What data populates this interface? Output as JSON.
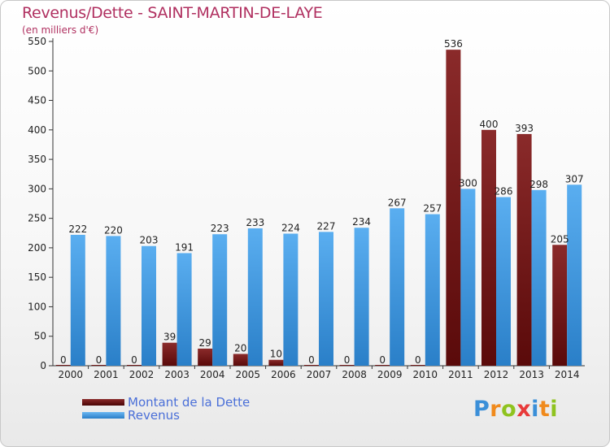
{
  "title": "Revenus/Dette - SAINT-MARTIN-DE-LAYE",
  "subtitle": "(en milliers d'€)",
  "logo": {
    "text": "Proxiti",
    "letters": [
      {
        "ch": "P",
        "color": "#3b8fd8"
      },
      {
        "ch": "r",
        "color": "#f08a1c"
      },
      {
        "ch": "o",
        "color": "#8fc31f"
      },
      {
        "ch": "x",
        "color": "#e83a3a"
      },
      {
        "ch": "i",
        "color": "#3b8fd8"
      },
      {
        "ch": "t",
        "color": "#f08a1c"
      },
      {
        "ch": "i",
        "color": "#8fc31f"
      }
    ]
  },
  "chart_data": {
    "type": "bar",
    "title": "Revenus/Dette - SAINT-MARTIN-DE-LAYE",
    "subtitle": "(en milliers d'€)",
    "xlabel": "",
    "ylabel": "",
    "ylim": [
      0,
      550
    ],
    "yticks": [
      0,
      50,
      100,
      150,
      200,
      250,
      300,
      350,
      400,
      450,
      500,
      550
    ],
    "grid": false,
    "legend_position": "bottom-left",
    "categories": [
      "2000",
      "2001",
      "2002",
      "2003",
      "2004",
      "2005",
      "2006",
      "2007",
      "2008",
      "2009",
      "2010",
      "2011",
      "2012",
      "2013",
      "2014"
    ],
    "series": [
      {
        "name": "Montant de la Dette",
        "color": "#7a1a1a",
        "values": [
          0,
          0,
          0,
          39,
          29,
          20,
          10,
          0,
          0,
          0,
          0,
          536,
          400,
          393,
          205
        ]
      },
      {
        "name": "Revenus",
        "color": "#4aa3e8",
        "values": [
          222,
          220,
          203,
          191,
          223,
          233,
          224,
          227,
          234,
          267,
          257,
          300,
          286,
          298,
          307
        ]
      }
    ]
  }
}
